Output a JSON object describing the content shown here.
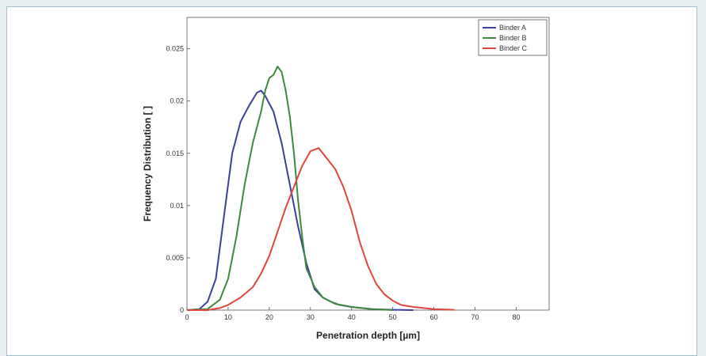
{
  "chart_data": {
    "type": "line",
    "xlabel": "Penetration depth [µm]",
    "ylabel": "Frequency Distribution [ ]",
    "xlim": [
      0,
      88
    ],
    "ylim": [
      0,
      0.028
    ],
    "x_ticks": [
      "0",
      "10",
      "20",
      "30",
      "40",
      "50",
      "60",
      "70",
      "80"
    ],
    "y_ticks": [
      "0",
      "0.005",
      "0.01",
      "0.015",
      "0.02",
      "0.025"
    ],
    "grid": false,
    "legend_position": "top-right",
    "series": [
      {
        "name": "Binder A",
        "color": "#3b3fa0",
        "points": [
          [
            0,
            0
          ],
          [
            3,
            0.0001
          ],
          [
            5,
            0.0008
          ],
          [
            7,
            0.003
          ],
          [
            9,
            0.009
          ],
          [
            11,
            0.015
          ],
          [
            13,
            0.018
          ],
          [
            15,
            0.0195
          ],
          [
            17,
            0.0208
          ],
          [
            18,
            0.021
          ],
          [
            19,
            0.0205
          ],
          [
            21,
            0.019
          ],
          [
            23,
            0.016
          ],
          [
            25,
            0.012
          ],
          [
            27,
            0.008
          ],
          [
            29,
            0.0045
          ],
          [
            31,
            0.002
          ],
          [
            33,
            0.0012
          ],
          [
            35,
            0.0008
          ],
          [
            37,
            0.0005
          ],
          [
            40,
            0.0003
          ],
          [
            45,
            0.0001
          ],
          [
            50,
            3e-05
          ],
          [
            55,
            0
          ]
        ]
      },
      {
        "name": "Binder B",
        "color": "#3c8a3c",
        "points": [
          [
            0,
            0
          ],
          [
            5,
            0.0001
          ],
          [
            8,
            0.001
          ],
          [
            10,
            0.003
          ],
          [
            12,
            0.007
          ],
          [
            14,
            0.012
          ],
          [
            16,
            0.016
          ],
          [
            18,
            0.019
          ],
          [
            19,
            0.021
          ],
          [
            20,
            0.0222
          ],
          [
            21,
            0.0225
          ],
          [
            22,
            0.0233
          ],
          [
            23,
            0.0228
          ],
          [
            24,
            0.021
          ],
          [
            25,
            0.0185
          ],
          [
            26,
            0.015
          ],
          [
            27,
            0.0105
          ],
          [
            28,
            0.007
          ],
          [
            29,
            0.004
          ],
          [
            31,
            0.0022
          ],
          [
            33,
            0.0012
          ],
          [
            36,
            0.0006
          ],
          [
            40,
            0.0003
          ],
          [
            45,
            0.0001
          ],
          [
            50,
            0
          ]
        ]
      },
      {
        "name": "Binder C",
        "color": "#e0463c",
        "points": [
          [
            0,
            0
          ],
          [
            5,
            0
          ],
          [
            8,
            0.0002
          ],
          [
            10,
            0.0005
          ],
          [
            13,
            0.0012
          ],
          [
            16,
            0.0022
          ],
          [
            18,
            0.0035
          ],
          [
            20,
            0.0052
          ],
          [
            22,
            0.0075
          ],
          [
            24,
            0.0098
          ],
          [
            26,
            0.0118
          ],
          [
            28,
            0.0138
          ],
          [
            30,
            0.0152
          ],
          [
            32,
            0.0155
          ],
          [
            34,
            0.0145
          ],
          [
            36,
            0.0135
          ],
          [
            38,
            0.0118
          ],
          [
            40,
            0.0095
          ],
          [
            42,
            0.0065
          ],
          [
            44,
            0.0042
          ],
          [
            46,
            0.0025
          ],
          [
            48,
            0.0015
          ],
          [
            50,
            0.0009
          ],
          [
            52,
            0.0005
          ],
          [
            55,
            0.0003
          ],
          [
            60,
            0.0001
          ],
          [
            65,
            3e-05
          ]
        ]
      }
    ]
  }
}
